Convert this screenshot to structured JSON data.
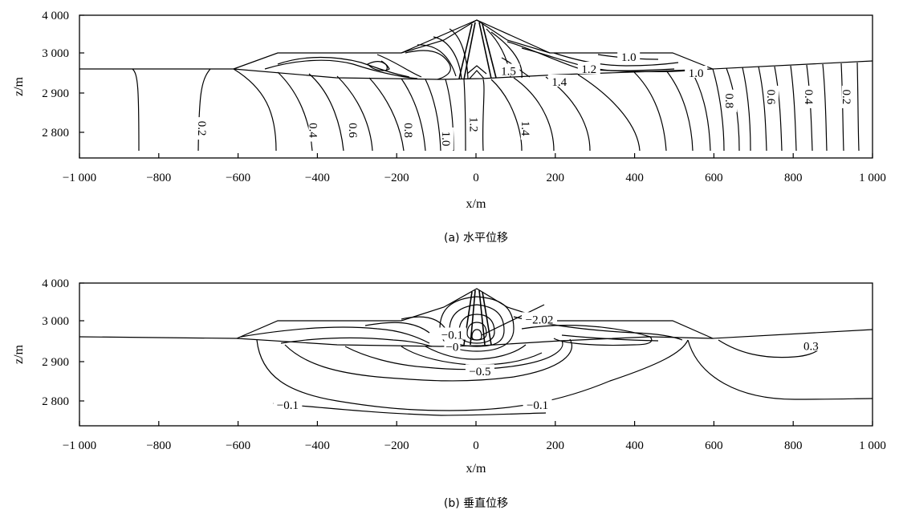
{
  "chart_data": [
    {
      "type": "contour",
      "caption": "(a) 水平位移",
      "xlabel": "x/m",
      "ylabel": "z/m",
      "xlim": [
        -1000,
        1000
      ],
      "ylim": [
        2740,
        4000
      ],
      "x_ticks": [
        -1000,
        -800,
        -600,
        -400,
        -200,
        0,
        200,
        400,
        600,
        800,
        1000
      ],
      "x_tick_labels": [
        "−1 000",
        "−800",
        "−600",
        "−400",
        "−200",
        "0",
        "200",
        "400",
        "600",
        "800",
        "1 000"
      ],
      "y_ticks": [
        4000,
        3000,
        2900,
        2800
      ],
      "y_tick_labels": [
        "4 000",
        "3 000",
        "2 900",
        "2 800"
      ],
      "contour_labels": [
        {
          "text": "0.2",
          "x": -690,
          "z": 2810,
          "rotated": true
        },
        {
          "text": "0.4",
          "x": -410,
          "z": 2805,
          "rotated": true
        },
        {
          "text": "0.6",
          "x": -310,
          "z": 2805,
          "rotated": true
        },
        {
          "text": "0.8",
          "x": -170,
          "z": 2805,
          "rotated": true
        },
        {
          "text": "1.0",
          "x": -75,
          "z": 2785,
          "rotated": true
        },
        {
          "text": "1.2",
          "x": -5,
          "z": 2820,
          "rotated": true
        },
        {
          "text": "1.4",
          "x": 125,
          "z": 2810,
          "rotated": true
        },
        {
          "text": "1.5",
          "x": 82,
          "z": 2955,
          "rotated": false
        },
        {
          "text": "1.4",
          "x": 210,
          "z": 2928,
          "rotated": false
        },
        {
          "text": "1.2",
          "x": 285,
          "z": 2960,
          "rotated": false
        },
        {
          "text": "1.0",
          "x": 385,
          "z": 2990,
          "rotated": false
        },
        {
          "text": "1.0",
          "x": 555,
          "z": 2950,
          "rotated": false
        },
        {
          "text": "0.8",
          "x": 640,
          "z": 2880,
          "rotated": true
        },
        {
          "text": "0.6",
          "x": 745,
          "z": 2890,
          "rotated": true
        },
        {
          "text": "0.4",
          "x": 840,
          "z": 2890,
          "rotated": true
        },
        {
          "text": "0.2",
          "x": 935,
          "z": 2890,
          "rotated": true
        }
      ]
    },
    {
      "type": "contour",
      "caption": "(b) 垂直位移",
      "xlabel": "x/m",
      "ylabel": "z/m",
      "xlim": [
        -1000,
        1000
      ],
      "ylim": [
        2740,
        4000
      ],
      "x_ticks": [
        -1000,
        -800,
        -600,
        -400,
        -200,
        0,
        200,
        400,
        600,
        800,
        1000
      ],
      "x_tick_labels": [
        "−1 000",
        "−800",
        "−600",
        "−400",
        "−200",
        "0",
        "200",
        "400",
        "600",
        "800",
        "1 000"
      ],
      "y_ticks": [
        4000,
        3000,
        2900,
        2800
      ],
      "y_tick_labels": [
        "4 000",
        "3 000",
        "2 900",
        "2 800"
      ],
      "contour_labels": [
        {
          "text": "−2.02",
          "x": 160,
          "z": 3035
        },
        {
          "text": "−0.1",
          "x": -475,
          "z": 2789
        },
        {
          "text": "−0.1",
          "x": 155,
          "z": 2789
        },
        {
          "text": "−0.5",
          "x": 10,
          "z": 2873
        },
        {
          "text": "0.3",
          "x": 845,
          "z": 2937
        },
        {
          "text": "−0.1",
          "x": -60,
          "z": 2965
        },
        {
          "text": "−0",
          "x": -60,
          "z": 2935
        }
      ]
    }
  ]
}
